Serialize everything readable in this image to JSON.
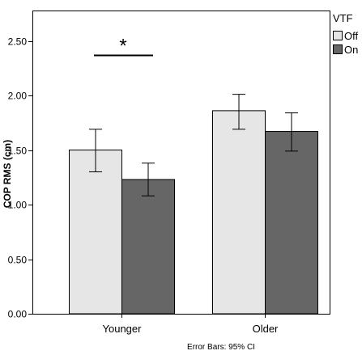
{
  "chart_data": {
    "type": "bar",
    "categories": [
      "Younger",
      "Older"
    ],
    "series": [
      {
        "name": "Off",
        "values": [
          1.5,
          1.86
        ],
        "ci_low": [
          1.3,
          1.69
        ],
        "ci_high": [
          1.69,
          2.01
        ],
        "color": "#e6e6e6"
      },
      {
        "name": "On",
        "values": [
          1.23,
          1.67
        ],
        "ci_low": [
          1.08,
          1.49
        ],
        "ci_high": [
          1.38,
          1.84
        ],
        "color": "#666666"
      }
    ],
    "ylabel": "COP RMS (cm)",
    "xlabel": "",
    "ylim": [
      0,
      2.8
    ],
    "yticks": [
      0.0,
      0.5,
      1.0,
      1.5,
      2.0,
      2.5
    ],
    "ytick_labels": [
      "0.00",
      "0.50",
      "1.00",
      "1.50",
      "2.00",
      "2.50"
    ],
    "grid": false,
    "legend": {
      "title": "VTF",
      "position": "top-right",
      "entries": [
        "Off",
        "On"
      ]
    },
    "footnote": "Error Bars: 95% CI",
    "annotation": {
      "text": "*",
      "category": "Younger",
      "y": 2.37
    }
  }
}
